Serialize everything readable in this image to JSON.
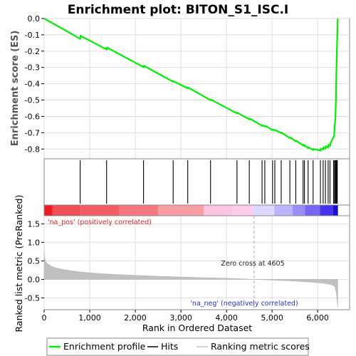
{
  "chart_data": [
    {
      "type": "line",
      "title": "Enrichment plot: BITON_S1_ISC.I",
      "ylabel": "Enrichment score (ES)",
      "ylim": [
        -0.86,
        0.0
      ],
      "yticks": [
        0.0,
        -0.1,
        -0.2,
        -0.3,
        -0.4,
        -0.5,
        -0.6,
        -0.7,
        -0.8
      ],
      "ytick_labels": [
        "0.0",
        "-0.1",
        "-0.2",
        "-0.3",
        "-0.4",
        "-0.5",
        "-0.6",
        "-0.7",
        "-0.8"
      ],
      "xlim": [
        0,
        6700
      ],
      "grid": true,
      "series": [
        {
          "name": "Enrichment profile",
          "color": "#00ee00",
          "x": [
            0,
            790,
            800,
            1370,
            1380,
            2180,
            2190,
            2830,
            2840,
            3150,
            3160,
            3650,
            3660,
            4230,
            4240,
            4500,
            4510,
            4780,
            4790,
            4840,
            4850,
            5010,
            5020,
            5060,
            5070,
            5200,
            5210,
            5390,
            5400,
            5520,
            5530,
            5680,
            5690,
            5710,
            5720,
            5790,
            5800,
            5900,
            5910,
            6060,
            6070,
            6120,
            6130,
            6170,
            6180,
            6230,
            6240,
            6270,
            6280,
            6360,
            6370,
            6390,
            6400,
            6410,
            6420,
            6440
          ],
          "y": [
            0.0,
            -0.124,
            -0.106,
            -0.19,
            -0.178,
            -0.298,
            -0.29,
            -0.388,
            -0.385,
            -0.428,
            -0.423,
            -0.501,
            -0.497,
            -0.582,
            -0.578,
            -0.618,
            -0.614,
            -0.658,
            -0.655,
            -0.662,
            -0.658,
            -0.684,
            -0.681,
            -0.686,
            -0.683,
            -0.703,
            -0.7,
            -0.733,
            -0.73,
            -0.753,
            -0.75,
            -0.778,
            -0.775,
            -0.782,
            -0.779,
            -0.794,
            -0.79,
            -0.806,
            -0.8,
            -0.81,
            -0.797,
            -0.803,
            -0.79,
            -0.798,
            -0.783,
            -0.79,
            -0.775,
            -0.781,
            -0.765,
            -0.72,
            -0.67,
            -0.6,
            -0.5,
            -0.35,
            -0.2,
            0.0
          ]
        }
      ],
      "hits": [
        790,
        1370,
        2180,
        2830,
        3150,
        3650,
        4230,
        4500,
        4780,
        4840,
        5010,
        5060,
        5200,
        5390,
        5520,
        5680,
        5710,
        5790,
        5900,
        6060,
        6120,
        6170,
        6230,
        6270,
        6350,
        6370,
        6390,
        6400,
        6410,
        6420,
        6430
      ]
    },
    {
      "type": "area",
      "ylabel": "Ranked list metric (PreRanked)",
      "xlabel": "Rank in Ordered Dataset",
      "xlim": [
        0,
        6700
      ],
      "ylim": [
        -0.82,
        1.72
      ],
      "xticks": [
        0,
        1000,
        2000,
        3000,
        4000,
        5000,
        6000
      ],
      "xtick_labels": [
        "0",
        "1,000",
        "2,000",
        "3,000",
        "4,000",
        "5,000",
        "6,000"
      ],
      "yticks": [
        1.5,
        1.0,
        0.5,
        0.0,
        -0.5
      ],
      "ytick_labels": [
        "1.5",
        "1.0",
        "0.5",
        "0.0",
        "-0.5"
      ],
      "grid": true,
      "x": [
        0,
        10,
        30,
        60,
        100,
        200,
        400,
        800,
        1200,
        1600,
        2000,
        2500,
        3000,
        3500,
        4000,
        4400,
        4605,
        5000,
        5400,
        5800,
        6100,
        6300,
        6380,
        6410,
        6440
      ],
      "values": [
        0.8,
        0.62,
        0.5,
        0.44,
        0.4,
        0.33,
        0.27,
        0.2,
        0.16,
        0.13,
        0.11,
        0.085,
        0.065,
        0.045,
        0.03,
        0.012,
        0.0,
        -0.02,
        -0.04,
        -0.07,
        -0.1,
        -0.14,
        -0.2,
        -0.38,
        -0.75
      ],
      "annotations": {
        "pos": "'na_pos' (positively correlated)",
        "neg": "'na_neg' (negatively correlated)",
        "zero": "Zero cross at 4605"
      },
      "zero_cross": 4605
    }
  ],
  "heatbar": {
    "segments": [
      {
        "from": 0,
        "to": 180,
        "color": "#ee1c24"
      },
      {
        "from": 180,
        "to": 800,
        "color": "#f24e56"
      },
      {
        "from": 800,
        "to": 1650,
        "color": "#f55b63"
      },
      {
        "from": 1650,
        "to": 2500,
        "color": "#f7777f"
      },
      {
        "from": 2500,
        "to": 3500,
        "color": "#fa9ca2"
      },
      {
        "from": 3500,
        "to": 4150,
        "color": "#fdc3e2"
      },
      {
        "from": 4150,
        "to": 4600,
        "color": "#ffccee"
      },
      {
        "from": 4600,
        "to": 5050,
        "color": "#dcd8ff"
      },
      {
        "from": 5050,
        "to": 5450,
        "color": "#bbb5fd"
      },
      {
        "from": 5450,
        "to": 5720,
        "color": "#9a8ffa"
      },
      {
        "from": 5720,
        "to": 6050,
        "color": "#7566f4"
      },
      {
        "from": 6050,
        "to": 6340,
        "color": "#4433ee"
      },
      {
        "from": 6340,
        "to": 6445,
        "color": "#1a0fcc"
      }
    ]
  },
  "legend": {
    "items": [
      {
        "label": "Enrichment profile",
        "color": "#00ee00",
        "icon": "green-line"
      },
      {
        "label": "Hits",
        "color": "#000000",
        "icon": "black-line"
      },
      {
        "label": "Ranking metric scores",
        "color": "#c0c0c0",
        "icon": "grey-line"
      }
    ]
  }
}
